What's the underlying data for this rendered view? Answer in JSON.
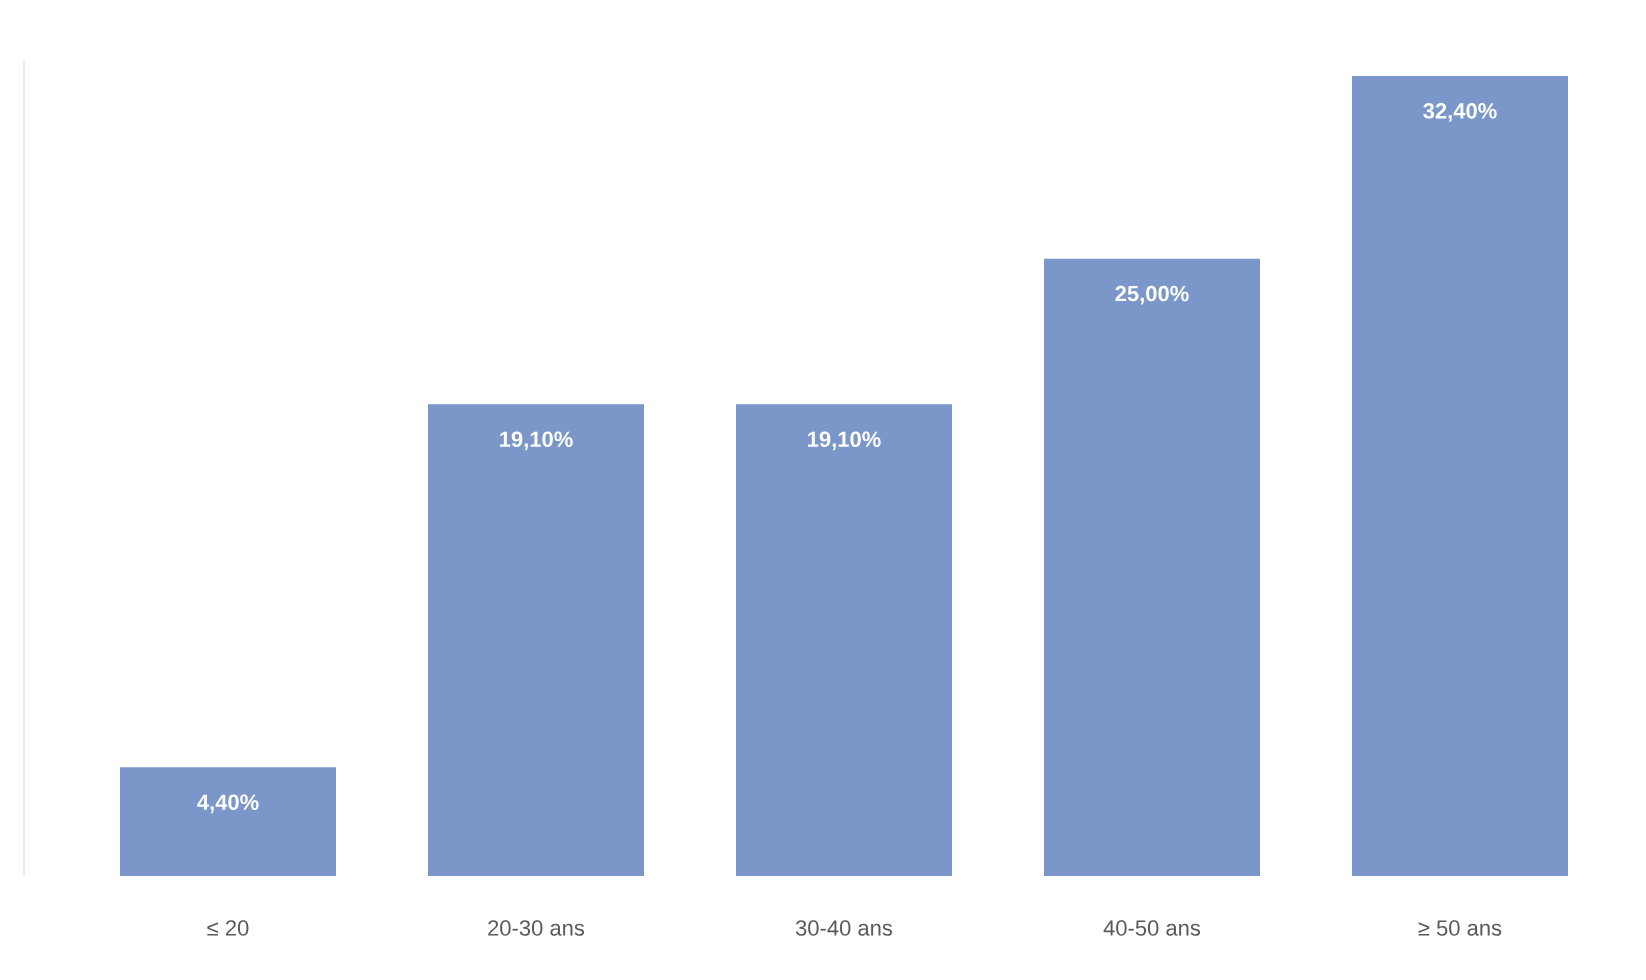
{
  "chart_data": {
    "type": "bar",
    "categories": [
      "≤ 20",
      "20-30 ans",
      "30-40 ans",
      "40-50 ans",
      "≥ 50 ans"
    ],
    "values": [
      4.4,
      19.1,
      19.1,
      25.0,
      32.4
    ],
    "value_labels": [
      "4,40%",
      "19,10%",
      "19,10%",
      "25,00%",
      "32,40%"
    ],
    "color": "#7b97c9"
  }
}
